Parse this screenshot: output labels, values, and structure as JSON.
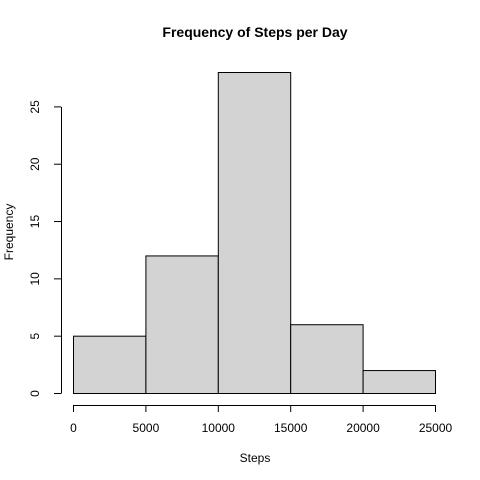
{
  "chart_data": {
    "type": "bar",
    "subtype": "histogram",
    "title": "Frequency of Steps per Day",
    "xlabel": "Steps",
    "ylabel": "Frequency",
    "bins": [
      {
        "start": 0,
        "end": 5000,
        "count": 5
      },
      {
        "start": 5000,
        "end": 10000,
        "count": 12
      },
      {
        "start": 10000,
        "end": 15000,
        "count": 28
      },
      {
        "start": 15000,
        "end": 20000,
        "count": 6
      },
      {
        "start": 20000,
        "end": 25000,
        "count": 2
      }
    ],
    "xlim": [
      0,
      25000
    ],
    "ylim": [
      0,
      28
    ],
    "x_ticks": [
      0,
      5000,
      10000,
      15000,
      20000,
      25000
    ],
    "y_ticks": [
      0,
      5,
      10,
      15,
      20,
      25
    ],
    "grid": false,
    "bar_fill": "#d3d3d3",
    "bar_stroke": "#000000"
  }
}
